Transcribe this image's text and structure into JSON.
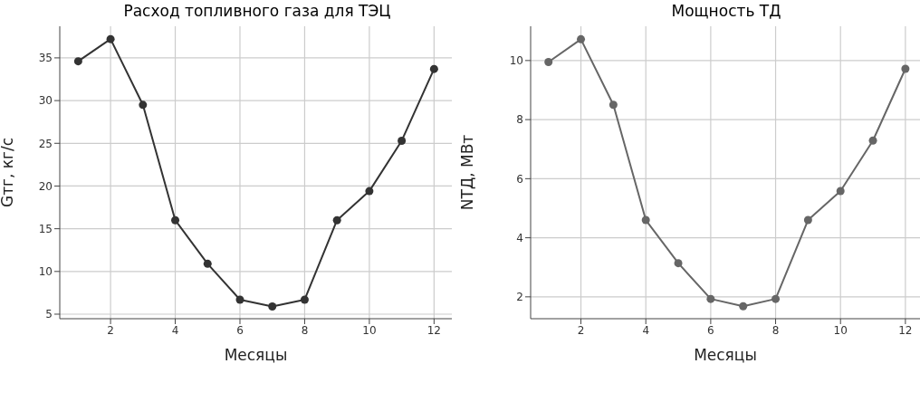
{
  "chart_data": [
    {
      "type": "line",
      "title": "Расход топливного газа для ТЭЦ",
      "xlabel": "Месяцы",
      "ylabel": "Gтг, кг/с",
      "x": [
        1,
        2,
        3,
        4,
        5,
        6,
        7,
        8,
        9,
        10,
        11,
        12
      ],
      "series": [
        {
          "color": "#333333",
          "values": [
            34.6,
            37.2,
            29.5,
            16.0,
            10.9,
            6.7,
            5.9,
            6.7,
            16.0,
            19.4,
            25.3,
            33.7
          ]
        }
      ],
      "xlim": [
        0.43,
        12.55
      ],
      "xticks": [
        2,
        4,
        6,
        8,
        10,
        12
      ],
      "ylim": [
        4.47,
        38.7
      ],
      "yticks": [
        5,
        10,
        15,
        20,
        25,
        30,
        35
      ],
      "grid": true,
      "marker": "circle",
      "line_style": "solid"
    },
    {
      "type": "line",
      "title": "Мощность ТД",
      "xlabel": "Месяцы",
      "ylabel": "NТД, МВт",
      "x": [
        1,
        2,
        3,
        4,
        5,
        6,
        7,
        8,
        9,
        10,
        11,
        12
      ],
      "series": [
        {
          "color": "#666666",
          "values": [
            9.95,
            10.72,
            8.5,
            4.6,
            3.14,
            1.93,
            1.68,
            1.93,
            4.6,
            5.58,
            7.29,
            9.72
          ]
        }
      ],
      "xlim": [
        0.45,
        12.45
      ],
      "xticks": [
        2,
        4,
        6,
        8,
        10,
        12
      ],
      "ylim": [
        1.26,
        11.16
      ],
      "yticks": [
        2,
        4,
        6,
        8,
        10
      ],
      "grid": true,
      "marker": "circle",
      "line_style": "solid"
    }
  ]
}
